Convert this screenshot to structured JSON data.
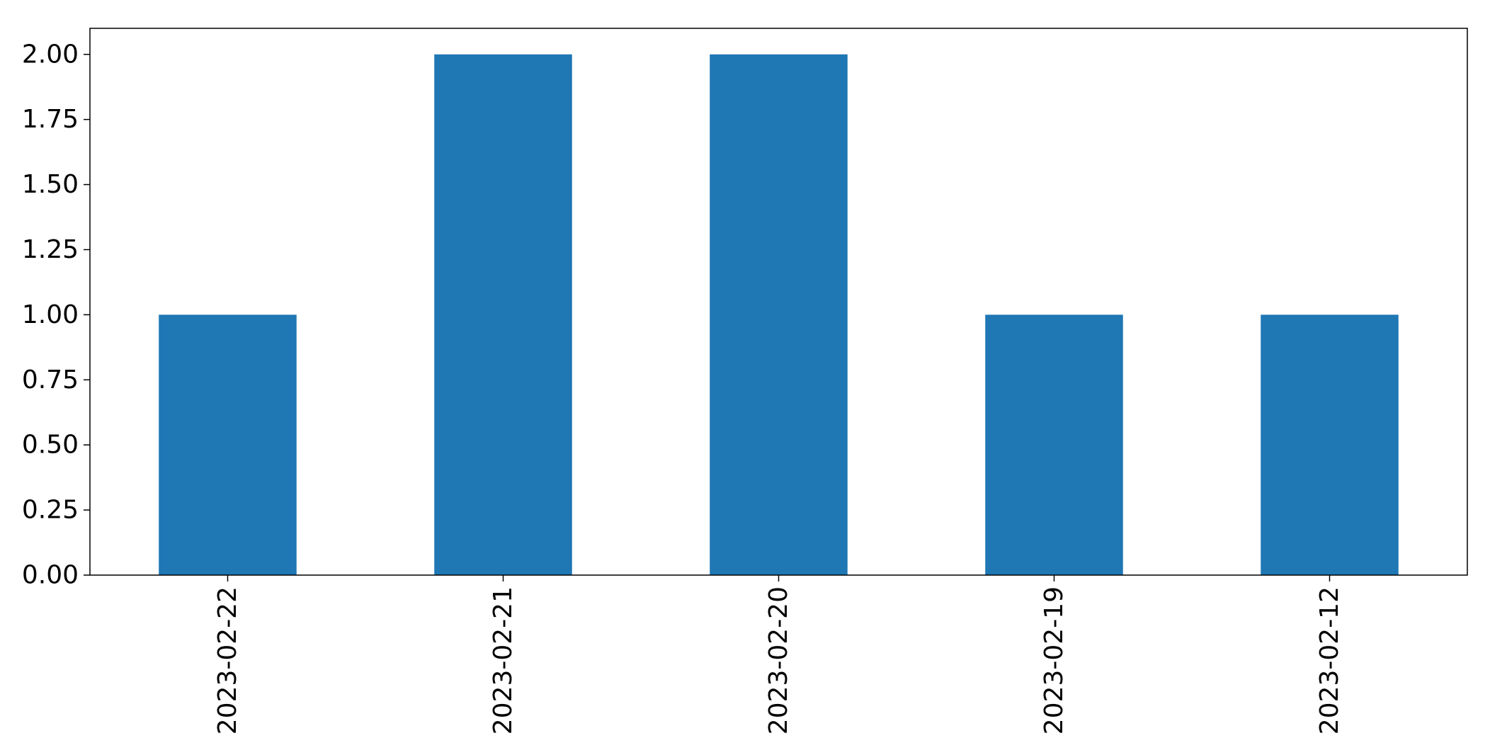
{
  "chart_data": {
    "type": "bar",
    "title": "",
    "xlabel": "",
    "ylabel": "",
    "categories": [
      "2023-02-22",
      "2023-02-21",
      "2023-02-20",
      "2023-02-19",
      "2023-02-12"
    ],
    "values": [
      1,
      2,
      2,
      1,
      1
    ],
    "ylim": [
      0,
      2.1
    ],
    "yticks": [
      "0.00",
      "0.25",
      "0.50",
      "0.75",
      "1.00",
      "1.25",
      "1.50",
      "1.75",
      "2.00"
    ],
    "grid": false,
    "legend": "none",
    "bar_color": "#1f77b4"
  }
}
